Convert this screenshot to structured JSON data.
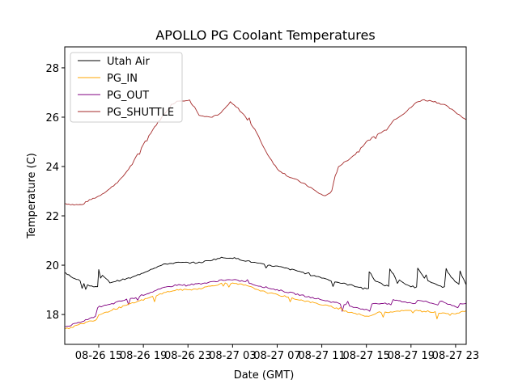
{
  "chart_data": {
    "type": "line",
    "title": "APOLLO PG Coolant Temperatures",
    "xlabel": "Date (GMT)",
    "ylabel": "Temperature (C)",
    "x_unit": "hours since 08-26 00:00 GMT",
    "xlim": [
      11.95,
      47.95
    ],
    "ylim": [
      16.79,
      28.85
    ],
    "xticks": [
      {
        "value": 15,
        "label": "08-26 15"
      },
      {
        "value": 19,
        "label": "08-26 19"
      },
      {
        "value": 23,
        "label": "08-26 23"
      },
      {
        "value": 27,
        "label": "08-27 03"
      },
      {
        "value": 31,
        "label": "08-27 07"
      },
      {
        "value": 35,
        "label": "08-27 11"
      },
      {
        "value": 39,
        "label": "08-27 15"
      },
      {
        "value": 43,
        "label": "08-27 19"
      },
      {
        "value": 47,
        "label": "08-27 23"
      }
    ],
    "yticks": [
      {
        "value": 18,
        "label": "18"
      },
      {
        "value": 20,
        "label": "20"
      },
      {
        "value": 22,
        "label": "22"
      },
      {
        "value": 24,
        "label": "24"
      },
      {
        "value": 26,
        "label": "26"
      },
      {
        "value": 28,
        "label": "28"
      }
    ],
    "grid": false,
    "legend_position": "top-left",
    "series": [
      {
        "name": "Utah Air",
        "color": "#000000",
        "points": [
          [
            12,
            19.7
          ],
          [
            12.5,
            19.55
          ],
          [
            13,
            19.4
          ],
          [
            13.5,
            19.3
          ],
          [
            14,
            19.2
          ],
          [
            14.9,
            19.1
          ],
          [
            15,
            19.8
          ],
          [
            15.5,
            19.5
          ],
          [
            16,
            19.3
          ],
          [
            17,
            19.4
          ],
          [
            18,
            19.5
          ],
          [
            19,
            19.7
          ],
          [
            20,
            19.9
          ],
          [
            21,
            20.05
          ],
          [
            22,
            20.1
          ],
          [
            23,
            20.1
          ],
          [
            24,
            20.1
          ],
          [
            25,
            20.2
          ],
          [
            26,
            20.3
          ],
          [
            27,
            20.3
          ],
          [
            28,
            20.2
          ],
          [
            29,
            20.1
          ],
          [
            30,
            20.0
          ],
          [
            31,
            19.95
          ],
          [
            32,
            19.85
          ],
          [
            33,
            19.75
          ],
          [
            34,
            19.6
          ],
          [
            35,
            19.5
          ],
          [
            36,
            19.35
          ],
          [
            37,
            19.25
          ],
          [
            38,
            19.15
          ],
          [
            39.2,
            19.05
          ],
          [
            39.25,
            19.75
          ],
          [
            39.7,
            19.4
          ],
          [
            40.5,
            19.2
          ],
          [
            41,
            19.15
          ],
          [
            41.1,
            19.85
          ],
          [
            41.6,
            19.5
          ],
          [
            42.5,
            19.2
          ],
          [
            43.5,
            19.1
          ],
          [
            43.6,
            19.9
          ],
          [
            44.2,
            19.5
          ],
          [
            45,
            19.25
          ],
          [
            46,
            19.1
          ],
          [
            46.15,
            19.85
          ],
          [
            46.6,
            19.5
          ],
          [
            47.3,
            19.2
          ],
          [
            47.4,
            19.75
          ],
          [
            47.95,
            19.2
          ]
        ]
      },
      {
        "name": "PG_IN",
        "color": "#ffa500",
        "points": [
          [
            12,
            17.4
          ],
          [
            13,
            17.55
          ],
          [
            14,
            17.7
          ],
          [
            14.8,
            17.8
          ],
          [
            15,
            18.0
          ],
          [
            16,
            18.15
          ],
          [
            17,
            18.3
          ],
          [
            18,
            18.45
          ],
          [
            19,
            18.6
          ],
          [
            20,
            18.75
          ],
          [
            21,
            18.9
          ],
          [
            22,
            19.0
          ],
          [
            23,
            19.0
          ],
          [
            24,
            19.05
          ],
          [
            25,
            19.15
          ],
          [
            26,
            19.25
          ],
          [
            27,
            19.25
          ],
          [
            28,
            19.2
          ],
          [
            29,
            19.05
          ],
          [
            30,
            18.9
          ],
          [
            31,
            18.8
          ],
          [
            32,
            18.7
          ],
          [
            33,
            18.6
          ],
          [
            34,
            18.5
          ],
          [
            35,
            18.4
          ],
          [
            36,
            18.3
          ],
          [
            37,
            18.15
          ],
          [
            38,
            18.05
          ],
          [
            39.2,
            17.9
          ],
          [
            39.6,
            18.0
          ],
          [
            40,
            18.1
          ],
          [
            41,
            18.1
          ],
          [
            42,
            18.15
          ],
          [
            43,
            18.15
          ],
          [
            44,
            18.15
          ],
          [
            45,
            18.1
          ],
          [
            46,
            18.05
          ],
          [
            47,
            18.05
          ],
          [
            47.95,
            18.15
          ]
        ]
      },
      {
        "name": "PG_OUT",
        "color": "#800080",
        "points": [
          [
            12,
            17.5
          ],
          [
            13,
            17.65
          ],
          [
            14,
            17.8
          ],
          [
            14.7,
            17.9
          ],
          [
            14.9,
            18.3
          ],
          [
            16,
            18.4
          ],
          [
            17,
            18.55
          ],
          [
            18,
            18.65
          ],
          [
            19,
            18.8
          ],
          [
            20,
            18.95
          ],
          [
            21,
            19.1
          ],
          [
            22,
            19.2
          ],
          [
            23,
            19.2
          ],
          [
            24,
            19.25
          ],
          [
            25,
            19.3
          ],
          [
            26,
            19.4
          ],
          [
            27,
            19.4
          ],
          [
            28,
            19.35
          ],
          [
            29,
            19.2
          ],
          [
            30,
            19.1
          ],
          [
            31,
            19.0
          ],
          [
            32,
            18.9
          ],
          [
            33,
            18.8
          ],
          [
            34,
            18.7
          ],
          [
            35,
            18.6
          ],
          [
            36,
            18.5
          ],
          [
            37,
            18.4
          ],
          [
            38,
            18.3
          ],
          [
            39.3,
            18.15
          ],
          [
            39.5,
            18.45
          ],
          [
            40.5,
            18.45
          ],
          [
            41.2,
            18.4
          ],
          [
            41.4,
            18.6
          ],
          [
            42.5,
            18.5
          ],
          [
            43.4,
            18.45
          ],
          [
            43.6,
            18.6
          ],
          [
            44.5,
            18.5
          ],
          [
            45.4,
            18.4
          ],
          [
            45.6,
            18.55
          ],
          [
            46.5,
            18.4
          ],
          [
            47.2,
            18.3
          ],
          [
            47.4,
            18.45
          ],
          [
            47.95,
            18.45
          ]
        ]
      },
      {
        "name": "PG_SHUTTLE",
        "color": "#a52a2a",
        "points": [
          [
            12,
            22.5
          ],
          [
            12.8,
            22.45
          ],
          [
            13.5,
            22.45
          ],
          [
            14,
            22.6
          ],
          [
            15,
            22.8
          ],
          [
            16,
            23.1
          ],
          [
            17,
            23.5
          ],
          [
            18,
            24.1
          ],
          [
            19,
            24.9
          ],
          [
            20,
            25.6
          ],
          [
            21,
            26.2
          ],
          [
            21.5,
            26.5
          ],
          [
            22,
            26.65
          ],
          [
            23,
            26.7
          ],
          [
            23.6,
            26.4
          ],
          [
            24,
            26.1
          ],
          [
            25,
            26.0
          ],
          [
            25.8,
            26.1
          ],
          [
            26.3,
            26.35
          ],
          [
            26.8,
            26.6
          ],
          [
            27.5,
            26.35
          ],
          [
            28,
            26.1
          ],
          [
            29,
            25.5
          ],
          [
            30,
            24.6
          ],
          [
            31,
            23.9
          ],
          [
            32,
            23.6
          ],
          [
            33,
            23.4
          ],
          [
            34,
            23.15
          ],
          [
            34.6,
            22.95
          ],
          [
            35.3,
            22.8
          ],
          [
            35.9,
            23.0
          ],
          [
            36.2,
            23.6
          ],
          [
            36.5,
            24.0
          ],
          [
            37,
            24.15
          ],
          [
            38,
            24.5
          ],
          [
            39,
            25.0
          ],
          [
            40,
            25.3
          ],
          [
            40.8,
            25.5
          ],
          [
            41.2,
            25.75
          ],
          [
            41.5,
            25.9
          ],
          [
            42.5,
            26.2
          ],
          [
            43,
            26.4
          ],
          [
            43.5,
            26.6
          ],
          [
            44,
            26.7
          ],
          [
            45,
            26.65
          ],
          [
            46,
            26.5
          ],
          [
            47,
            26.2
          ],
          [
            47.95,
            25.9
          ]
        ]
      }
    ]
  }
}
